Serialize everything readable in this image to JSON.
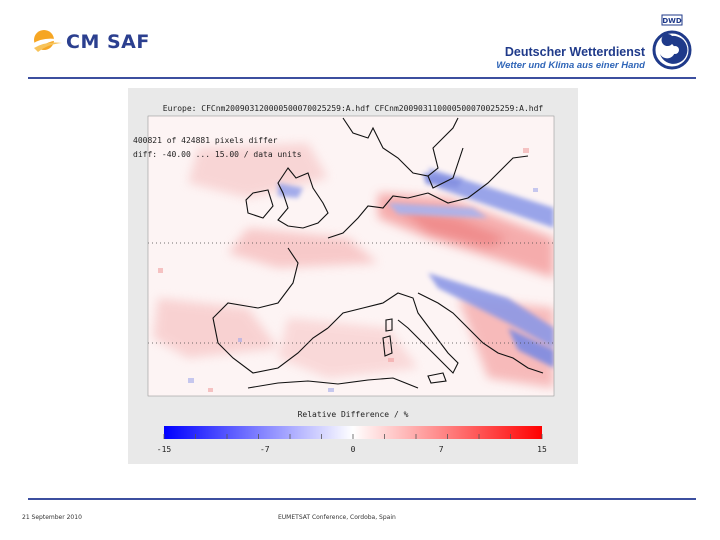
{
  "header": {
    "cmsaf_logo_text": "CM SAF",
    "dwd_name": "Deutscher Wetterdienst",
    "dwd_slogan": "Wetter und Klima aus einer Hand",
    "dwd_emblem_text": "DWD",
    "rule_color": "#3c4f9f"
  },
  "map": {
    "title": "Europe: CFCnm200903120000500070025259:A.hdf   CFCnm200903110000500070025259:A.hdf",
    "stat_line1": "400821 of 424881 pixels differ",
    "stat_line2": "diff: -40.00 ... 15.00 / data units",
    "colorbar": {
      "title": "Relative Difference / %",
      "ticks": [
        "-15",
        "-7",
        "0",
        "7",
        "15"
      ],
      "tick_values": [
        -15,
        -7,
        0,
        7,
        15
      ],
      "range": [
        -15,
        15
      ],
      "colors": {
        "min": "#0000ff",
        "mid": "#ffffff",
        "max": "#ff0000"
      }
    }
  },
  "footer": {
    "date": "21 September 2010",
    "conference": "EUMETSAT Conference, Cordoba, Spain"
  }
}
